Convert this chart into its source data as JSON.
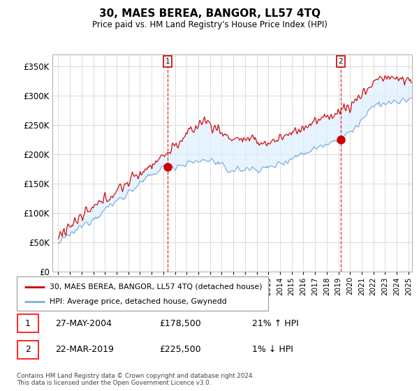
{
  "title": "30, MAES BEREA, BANGOR, LL57 4TQ",
  "subtitle": "Price paid vs. HM Land Registry's House Price Index (HPI)",
  "ylabel_ticks": [
    "£0",
    "£50K",
    "£100K",
    "£150K",
    "£200K",
    "£250K",
    "£300K",
    "£350K"
  ],
  "ytick_values": [
    0,
    50000,
    100000,
    150000,
    200000,
    250000,
    300000,
    350000
  ],
  "ylim": [
    0,
    370000
  ],
  "xlim_start": 1994.5,
  "xlim_end": 2025.3,
  "background_color": "#ffffff",
  "grid_color": "#cccccc",
  "line_color_red": "#cc0000",
  "line_color_blue": "#7aaddb",
  "fill_color_blue": "#ddeeff",
  "marker1_date": 2004.38,
  "marker1_value": 178500,
  "marker2_date": 2019.2,
  "marker2_value": 225500,
  "legend_label_red": "30, MAES BEREA, BANGOR, LL57 4TQ (detached house)",
  "legend_label_blue": "HPI: Average price, detached house, Gwynedd",
  "annotation1_label": "1",
  "annotation1_date": "27-MAY-2004",
  "annotation1_price": "£178,500",
  "annotation1_hpi": "21% ↑ HPI",
  "annotation2_label": "2",
  "annotation2_date": "22-MAR-2019",
  "annotation2_price": "£225,500",
  "annotation2_hpi": "1% ↓ HPI",
  "footer": "Contains HM Land Registry data © Crown copyright and database right 2024.\nThis data is licensed under the Open Government Licence v3.0.",
  "xtick_years": [
    1995,
    1996,
    1997,
    1998,
    1999,
    2000,
    2001,
    2002,
    2003,
    2004,
    2005,
    2006,
    2007,
    2008,
    2009,
    2010,
    2011,
    2012,
    2013,
    2014,
    2015,
    2016,
    2017,
    2018,
    2019,
    2020,
    2021,
    2022,
    2023,
    2024,
    2025
  ]
}
